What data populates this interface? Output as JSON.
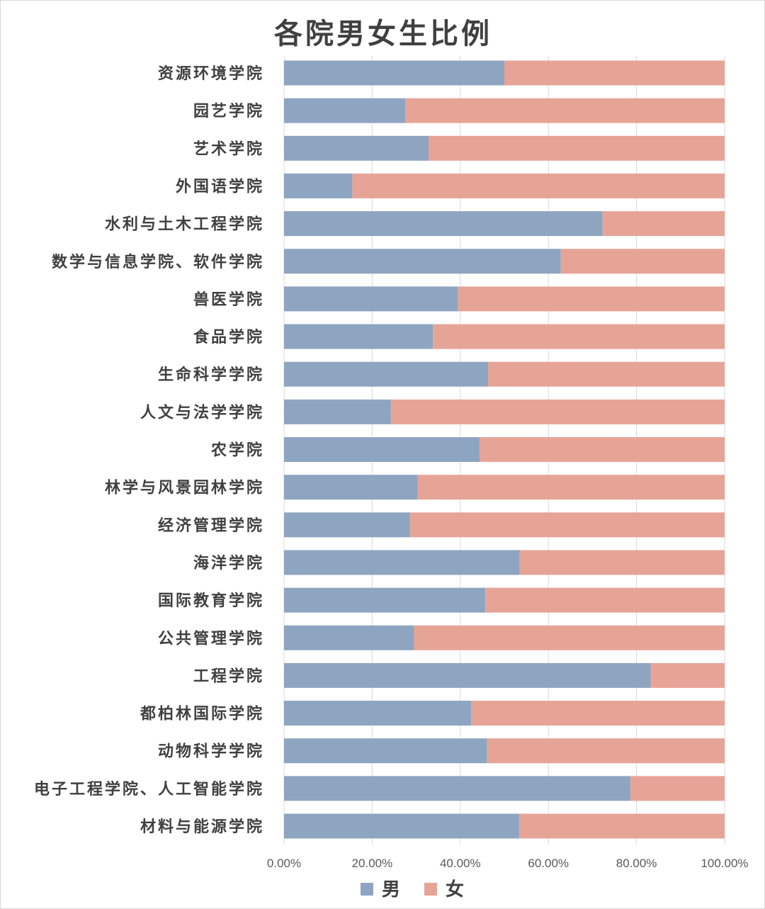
{
  "chart_data": {
    "type": "bar",
    "orientation": "horizontal",
    "stacked": true,
    "title": "各院男女生比例",
    "categories": [
      "资源环境学院",
      "园艺学院",
      "艺术学院",
      "外国语学院",
      "水利与土木工程学院",
      "数学与信息学院、软件学院",
      "兽医学院",
      "食品学院",
      "生命科学学院",
      "人文与法学学院",
      "农学院",
      "林学与风景园林学院",
      "经济管理学院",
      "海洋学院",
      "国际教育学院",
      "公共管理学院",
      "工程学院",
      "都柏林国际学院",
      "动物科学学院",
      "电子工程学院、人工智能学院",
      "材料与能源学院"
    ],
    "series": [
      {
        "name": "男",
        "color": "#8ea5c1",
        "values": [
          0.5,
          0.275,
          0.328,
          0.155,
          0.723,
          0.628,
          0.395,
          0.338,
          0.463,
          0.242,
          0.444,
          0.303,
          0.286,
          0.535,
          0.457,
          0.295,
          0.832,
          0.425,
          0.461,
          0.786,
          0.534
        ]
      },
      {
        "name": "女",
        "color": "#e6a497",
        "values": [
          0.5,
          0.725,
          0.672,
          0.845,
          0.277,
          0.372,
          0.605,
          0.662,
          0.537,
          0.758,
          0.556,
          0.697,
          0.714,
          0.465,
          0.543,
          0.705,
          0.168,
          0.575,
          0.539,
          0.214,
          0.466
        ]
      }
    ],
    "x_ticks": [
      "0.00%",
      "20.00%",
      "40.00%",
      "60.00%",
      "80.00%",
      "100.00%"
    ],
    "xlim": [
      0,
      1
    ],
    "grid": true,
    "legend_position": "bottom"
  }
}
